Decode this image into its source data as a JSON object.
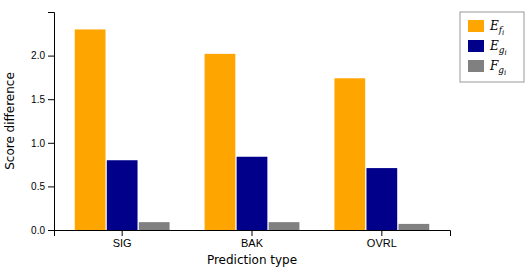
{
  "chart_data": {
    "type": "bar",
    "categories": [
      "SIG",
      "BAK",
      "OVRL"
    ],
    "series": [
      {
        "name": "Efi",
        "color": "#FFA500",
        "values": [
          2.3,
          2.02,
          1.74
        ]
      },
      {
        "name": "Egi",
        "color": "#00008B",
        "values": [
          0.8,
          0.84,
          0.71
        ]
      },
      {
        "name": "Fgi",
        "color": "#808080",
        "values": [
          0.09,
          0.09,
          0.07
        ]
      }
    ],
    "xlabel": "Prediction type",
    "ylabel": "Score difference",
    "ylim": [
      0,
      2.5
    ],
    "yticks": [
      {
        "value": 0,
        "label": "0.0"
      },
      0.5,
      {
        "value": 1,
        "label": "1.0"
      },
      1.5,
      {
        "value": 2,
        "label": "2.0"
      }
    ],
    "legend": "upper right",
    "grid": false
  }
}
